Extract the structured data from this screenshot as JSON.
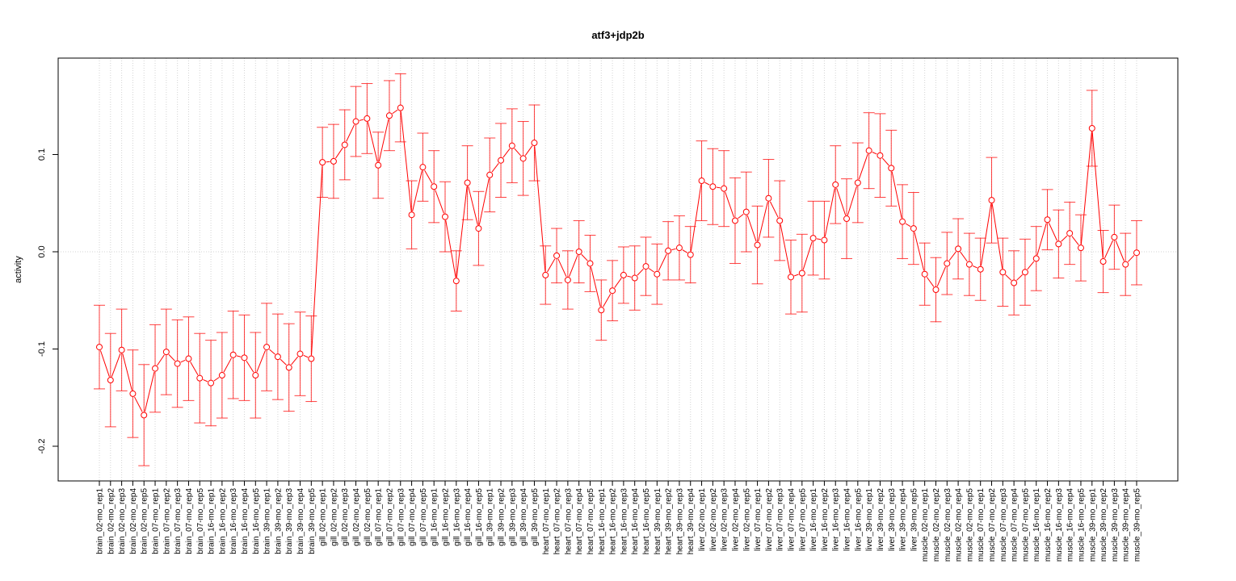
{
  "chart_data": {
    "type": "line",
    "title": "atf3+jdp2b",
    "xlabel": "",
    "ylabel": "activity",
    "ylim": [
      -0.235,
      0.2
    ],
    "yticks": [
      -0.2,
      -0.1,
      0.0,
      0.1
    ],
    "ytick_labels": [
      "-0.2",
      "-0.1",
      "0.0",
      "0.1"
    ],
    "grid": "dotted vertical per category, dotted horizontal at 0",
    "series_color": "#FF0000",
    "categories": [
      "brain_02-mo_rep1",
      "brain_02-mo_rep2",
      "brain_02-mo_rep3",
      "brain_02-mo_rep4",
      "brain_02-mo_rep5",
      "brain_07-mo_rep1",
      "brain_07-mo_rep2",
      "brain_07-mo_rep3",
      "brain_07-mo_rep4",
      "brain_07-mo_rep5",
      "brain_16-mo_rep1",
      "brain_16-mo_rep2",
      "brain_16-mo_rep3",
      "brain_16-mo_rep4",
      "brain_16-mo_rep5",
      "brain_39-mo_rep1",
      "brain_39-mo_rep2",
      "brain_39-mo_rep3",
      "brain_39-mo_rep4",
      "brain_39-mo_rep5",
      "gill_02-mo_rep1",
      "gill_02-mo_rep2",
      "gill_02-mo_rep3",
      "gill_02-mo_rep4",
      "gill_02-mo_rep5",
      "gill_07-mo_rep1",
      "gill_07-mo_rep2",
      "gill_07-mo_rep3",
      "gill_07-mo_rep4",
      "gill_07-mo_rep5",
      "gill_16-mo_rep1",
      "gill_16-mo_rep2",
      "gill_16-mo_rep3",
      "gill_16-mo_rep4",
      "gill_16-mo_rep5",
      "gill_39-mo_rep1",
      "gill_39-mo_rep2",
      "gill_39-mo_rep3",
      "gill_39-mo_rep4",
      "gill_39-mo_rep5",
      "heart_07-mo_rep1",
      "heart_07-mo_rep2",
      "heart_07-mo_rep3",
      "heart_07-mo_rep4",
      "heart_07-mo_rep5",
      "heart_16-mo_rep1",
      "heart_16-mo_rep2",
      "heart_16-mo_rep3",
      "heart_16-mo_rep4",
      "heart_16-mo_rep5",
      "heart_39-mo_rep1",
      "heart_39-mo_rep2",
      "heart_39-mo_rep3",
      "heart_39-mo_rep4",
      "liver_02-mo_rep1",
      "liver_02-mo_rep2",
      "liver_02-mo_rep3",
      "liver_02-mo_rep4",
      "liver_02-mo_rep5",
      "liver_07-mo_rep1",
      "liver_07-mo_rep2",
      "liver_07-mo_rep3",
      "liver_07-mo_rep4",
      "liver_07-mo_rep5",
      "liver_16-mo_rep1",
      "liver_16-mo_rep2",
      "liver_16-mo_rep3",
      "liver_16-mo_rep4",
      "liver_16-mo_rep5",
      "liver_39-mo_rep1",
      "liver_39-mo_rep2",
      "liver_39-mo_rep3",
      "liver_39-mo_rep4",
      "liver_39-mo_rep5",
      "muscle_02-mo_rep1",
      "muscle_02-mo_rep2",
      "muscle_02-mo_rep3",
      "muscle_02-mo_rep4",
      "muscle_02-mo_rep5",
      "muscle_07-mo_rep1",
      "muscle_07-mo_rep2",
      "muscle_07-mo_rep3",
      "muscle_07-mo_rep4",
      "muscle_07-mo_rep5",
      "muscle_16-mo_rep1",
      "muscle_16-mo_rep2",
      "muscle_16-mo_rep3",
      "muscle_16-mo_rep4",
      "muscle_16-mo_rep5",
      "muscle_39-mo_rep1",
      "muscle_39-mo_rep2",
      "muscle_39-mo_rep3",
      "muscle_39-mo_rep4",
      "muscle_39-mo_rep5"
    ],
    "series": [
      {
        "name": "activity",
        "values": [
          -0.098,
          -0.132,
          -0.101,
          -0.146,
          -0.168,
          -0.12,
          -0.103,
          -0.115,
          -0.11,
          -0.13,
          -0.135,
          -0.127,
          -0.106,
          -0.109,
          -0.127,
          -0.098,
          -0.108,
          -0.119,
          -0.105,
          -0.11,
          0.092,
          0.093,
          0.11,
          0.134,
          0.137,
          0.089,
          0.14,
          0.148,
          0.038,
          0.087,
          0.067,
          0.036,
          -0.03,
          0.071,
          0.024,
          0.079,
          0.094,
          0.109,
          0.096,
          0.112,
          -0.024,
          -0.004,
          -0.029,
          0.0,
          -0.012,
          -0.06,
          -0.04,
          -0.024,
          -0.027,
          -0.015,
          -0.023,
          0.001,
          0.004,
          -0.003,
          0.073,
          0.067,
          0.065,
          0.032,
          0.041,
          0.007,
          0.055,
          0.032,
          -0.026,
          -0.022,
          0.014,
          0.012,
          0.069,
          0.034,
          0.071,
          0.104,
          0.099,
          0.086,
          0.031,
          0.024,
          -0.023,
          -0.039,
          -0.012,
          0.003,
          -0.013,
          -0.018,
          0.053,
          -0.021,
          -0.032,
          -0.021,
          -0.007,
          0.033,
          0.008,
          0.019,
          0.004,
          0.127,
          -0.01,
          0.015,
          -0.013,
          -0.001
        ],
        "error": [
          0.043,
          0.048,
          0.042,
          0.045,
          0.052,
          0.045,
          0.044,
          0.045,
          0.043,
          0.046,
          0.044,
          0.044,
          0.045,
          0.044,
          0.044,
          0.045,
          0.044,
          0.045,
          0.043,
          0.044,
          0.036,
          0.038,
          0.036,
          0.036,
          0.036,
          0.034,
          0.036,
          0.035,
          0.035,
          0.035,
          0.037,
          0.036,
          0.031,
          0.038,
          0.038,
          0.038,
          0.038,
          0.038,
          0.038,
          0.039,
          0.03,
          0.028,
          0.03,
          0.032,
          0.029,
          0.031,
          0.031,
          0.029,
          0.033,
          0.03,
          0.031,
          0.03,
          0.033,
          0.029,
          0.041,
          0.039,
          0.039,
          0.044,
          0.041,
          0.04,
          0.04,
          0.041,
          0.038,
          0.04,
          0.038,
          0.04,
          0.04,
          0.041,
          0.041,
          0.039,
          0.043,
          0.039,
          0.038,
          0.037,
          0.032,
          0.033,
          0.032,
          0.031,
          0.032,
          0.032,
          0.044,
          0.035,
          0.033,
          0.034,
          0.033,
          0.031,
          0.035,
          0.032,
          0.034,
          0.039,
          0.032,
          0.033,
          0.032,
          0.033
        ]
      }
    ]
  }
}
